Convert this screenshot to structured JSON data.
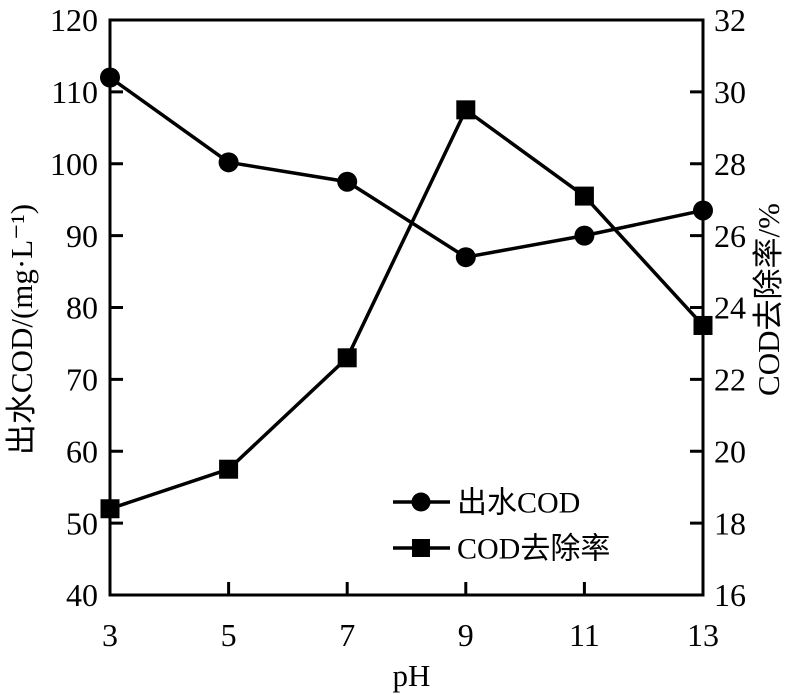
{
  "chart_data": {
    "type": "line",
    "title": "",
    "xlabel": "pH",
    "x": [
      3,
      5,
      7,
      9,
      11,
      13
    ],
    "xlim": [
      3,
      13
    ],
    "xticks": [
      3,
      5,
      7,
      9,
      11,
      13
    ],
    "left_axis": {
      "label": "出水COD/(mg·L⁻¹)",
      "lim": [
        40,
        120
      ],
      "ticks": [
        40,
        50,
        60,
        70,
        80,
        90,
        100,
        110,
        120
      ]
    },
    "right_axis": {
      "label": "COD去除率/%",
      "lim": [
        16,
        32
      ],
      "ticks": [
        16,
        18,
        20,
        22,
        24,
        26,
        28,
        30,
        32
      ]
    },
    "series": [
      {
        "name": "出水COD",
        "axis": "left",
        "marker": "circle",
        "color": "#000000",
        "values": [
          112,
          100.2,
          97.5,
          87,
          90,
          93.5
        ]
      },
      {
        "name": "COD去除率",
        "axis": "right",
        "marker": "square",
        "color": "#000000",
        "values": [
          18.4,
          19.5,
          22.6,
          29.5,
          27.1,
          23.5
        ]
      }
    ],
    "legend": {
      "position": "inside-bottom-right",
      "entries": [
        "出水COD",
        "COD去除率"
      ]
    },
    "grid": false,
    "frame": true,
    "background": "#ffffff",
    "foreground": "#000000"
  }
}
